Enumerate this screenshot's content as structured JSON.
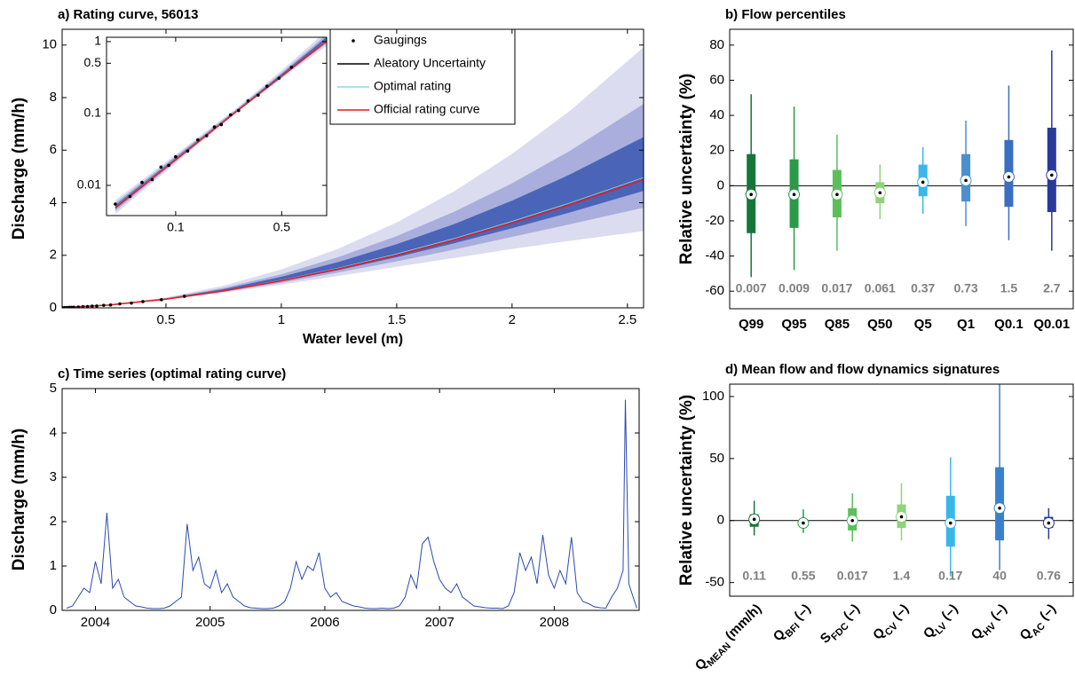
{
  "chart_data": [
    {
      "type": "line",
      "title": "a) Rating curve, 56013",
      "x_label": "Water level (m)",
      "y_label": "Discharge (mm/h)",
      "xlim": [
        0.05,
        2.57
      ],
      "ylim": [
        0,
        10.6
      ],
      "xticks": [
        0.5,
        1,
        1.5,
        2,
        2.5
      ],
      "yticks": [
        0,
        2,
        4,
        6,
        8,
        10
      ],
      "x": [
        0.04,
        0.25,
        0.5,
        0.75,
        1,
        1.25,
        1.5,
        1.75,
        2,
        2.25,
        2.57
      ],
      "bands": [
        {
          "color": "#dcdcf0",
          "lower": [
            0.004,
            0.103,
            0.306,
            0.576,
            0.88,
            1.22,
            1.56,
            1.9,
            2.24,
            2.55,
            2.92
          ],
          "upper": [
            0.0062,
            0.117,
            0.398,
            0.845,
            1.46,
            2.26,
            3.25,
            4.44,
            5.86,
            7.49,
            9.92
          ]
        },
        {
          "color": "#a9aedc",
          "lower": [
            0.0044,
            0.105,
            0.318,
            0.61,
            0.955,
            1.35,
            1.77,
            2.22,
            2.7,
            3.18,
            3.81
          ],
          "upper": [
            0.0057,
            0.113,
            0.37,
            0.762,
            1.28,
            1.94,
            2.73,
            3.66,
            4.74,
            5.97,
            7.76
          ]
        },
        {
          "color": "#4a64b8",
          "lower": [
            0.0047,
            0.106,
            0.326,
            0.634,
            1.01,
            1.44,
            1.93,
            2.46,
            3.03,
            3.63,
            4.45
          ],
          "upper": [
            0.0053,
            0.11,
            0.353,
            0.713,
            1.18,
            1.75,
            2.42,
            3.19,
            4.08,
            5.07,
            6.5
          ]
        }
      ],
      "points": {
        "name": "Gaugings",
        "color": "#000000",
        "x": [
          0.04,
          0.05,
          0.06,
          0.07,
          0.08,
          0.09,
          0.1,
          0.12,
          0.14,
          0.16,
          0.18,
          0.2,
          0.23,
          0.26,
          0.3,
          0.35,
          0.4,
          0.48,
          0.58
        ],
        "y": [
          0.0055,
          0.007,
          0.011,
          0.012,
          0.018,
          0.019,
          0.025,
          0.03,
          0.043,
          0.049,
          0.065,
          0.07,
          0.096,
          0.11,
          0.15,
          0.18,
          0.24,
          0.31,
          0.44
        ]
      },
      "series": [
        {
          "name": "Aleatory Uncertainty",
          "color": "#000000",
          "values": [
            0.005,
            0.107,
            0.333,
            0.654,
            1.05,
            1.52,
            2.05,
            2.64,
            3.29,
            3.99,
            4.96
          ]
        },
        {
          "name": "Optimal rating",
          "color": "#8fd6ee",
          "values": [
            0.005,
            0.107,
            0.333,
            0.654,
            1.05,
            1.52,
            2.05,
            2.64,
            3.29,
            3.99,
            4.96
          ]
        },
        {
          "name": "Official rating curve",
          "color": "#e8191c",
          "values": [
            0.0049,
            0.105,
            0.33,
            0.645,
            1.03,
            1.49,
            2.01,
            2.59,
            3.23,
            3.92,
            4.88
          ]
        }
      ],
      "inset": {
        "log": true,
        "xlim": [
          0.035,
          0.99
        ],
        "ylim": [
          0.0038,
          1.15
        ],
        "xticks": [
          0.1,
          0.5
        ],
        "yticks": [
          0.01,
          0.1,
          0.5,
          1
        ]
      }
    },
    {
      "type": "box",
      "title": "b) Flow percentiles",
      "y_label": "Relative uncertainty (%)",
      "ylim": [
        -70,
        89
      ],
      "yticks": [
        -60,
        -40,
        -20,
        0,
        20,
        40,
        60,
        80
      ],
      "zero_line": true,
      "categories": [
        "Q99",
        "Q95",
        "Q85",
        "Q50",
        "Q5",
        "Q1",
        "Q0.1",
        "Q0.01"
      ],
      "flows": [
        0.007,
        0.009,
        0.017,
        0.061,
        0.37,
        0.73,
        1.5,
        2.7
      ],
      "boxes": [
        {
          "low": -52,
          "q1": -27,
          "median": -5,
          "q3": 18,
          "high": 52,
          "color": "#16763a"
        },
        {
          "low": -48,
          "q1": -24,
          "median": -5,
          "q3": 15,
          "high": 45,
          "color": "#2a9a48"
        },
        {
          "low": -37,
          "q1": -18,
          "median": -5,
          "q3": 9,
          "high": 29,
          "color": "#5cbf5c"
        },
        {
          "low": -19,
          "q1": -10,
          "median": -4,
          "q3": 2,
          "high": 12,
          "color": "#8fd37a"
        },
        {
          "low": -16,
          "q1": -6,
          "median": 2,
          "q3": 12,
          "high": 22,
          "color": "#3ab7ea"
        },
        {
          "low": -23,
          "q1": -9,
          "median": 3,
          "q3": 18,
          "high": 37,
          "color": "#4a90d0"
        },
        {
          "low": -31,
          "q1": -12,
          "median": 5,
          "q3": 26,
          "high": 57,
          "color": "#3a6ec0"
        },
        {
          "low": -37,
          "q1": -15,
          "median": 6,
          "q3": 33,
          "high": 77,
          "color": "#2a3a9a"
        }
      ]
    },
    {
      "type": "line",
      "title": "c) Time series (optimal rating curve)",
      "y_label": "Discharge (mm/h)",
      "xlim": [
        2003.71,
        2008.74
      ],
      "ylim": [
        0,
        5
      ],
      "xticks": [
        2004,
        2005,
        2006,
        2007,
        2008
      ],
      "yticks": [
        0,
        1,
        2,
        3,
        4,
        5
      ],
      "color": "#2b4ab0",
      "x": [
        2003.75,
        2003.8,
        2003.85,
        2003.9,
        2003.95,
        2004.0,
        2004.05,
        2004.1,
        2004.15,
        2004.2,
        2004.25,
        2004.3,
        2004.35,
        2004.4,
        2004.45,
        2004.5,
        2004.55,
        2004.6,
        2004.65,
        2004.7,
        2004.75,
        2004.8,
        2004.85,
        2004.9,
        2004.95,
        2005.0,
        2005.05,
        2005.1,
        2005.15,
        2005.2,
        2005.25,
        2005.3,
        2005.35,
        2005.4,
        2005.45,
        2005.5,
        2005.55,
        2005.6,
        2005.65,
        2005.7,
        2005.75,
        2005.8,
        2005.85,
        2005.9,
        2005.95,
        2006.0,
        2006.05,
        2006.1,
        2006.15,
        2006.2,
        2006.25,
        2006.3,
        2006.35,
        2006.4,
        2006.45,
        2006.5,
        2006.55,
        2006.6,
        2006.65,
        2006.7,
        2006.75,
        2006.8,
        2006.85,
        2006.9,
        2006.95,
        2007.0,
        2007.05,
        2007.1,
        2007.15,
        2007.2,
        2007.25,
        2007.3,
        2007.35,
        2007.4,
        2007.45,
        2007.5,
        2007.55,
        2007.6,
        2007.65,
        2007.7,
        2007.75,
        2007.8,
        2007.85,
        2007.9,
        2007.95,
        2008.0,
        2008.05,
        2008.1,
        2008.15,
        2008.2,
        2008.25,
        2008.3,
        2008.35,
        2008.4,
        2008.45,
        2008.5,
        2008.55,
        2008.6,
        2008.62,
        2008.65,
        2008.7,
        2008.72
      ],
      "values": [
        0.05,
        0.1,
        0.3,
        0.5,
        0.4,
        1.1,
        0.6,
        2.2,
        0.5,
        0.7,
        0.3,
        0.2,
        0.1,
        0.08,
        0.05,
        0.04,
        0.04,
        0.05,
        0.1,
        0.2,
        0.3,
        1.95,
        0.9,
        1.2,
        0.6,
        0.5,
        0.9,
        0.4,
        0.6,
        0.3,
        0.2,
        0.1,
        0.06,
        0.05,
        0.04,
        0.04,
        0.05,
        0.1,
        0.2,
        0.5,
        1.1,
        0.7,
        1.0,
        0.9,
        1.3,
        0.5,
        0.3,
        0.4,
        0.2,
        0.15,
        0.1,
        0.08,
        0.05,
        0.04,
        0.04,
        0.05,
        0.04,
        0.05,
        0.1,
        0.3,
        0.8,
        0.5,
        1.5,
        1.65,
        1.1,
        0.7,
        0.5,
        0.4,
        0.6,
        0.3,
        0.2,
        0.1,
        0.08,
        0.06,
        0.05,
        0.05,
        0.04,
        0.1,
        0.4,
        1.3,
        0.9,
        1.2,
        0.6,
        1.7,
        0.8,
        0.5,
        0.9,
        0.6,
        1.65,
        0.4,
        0.2,
        0.15,
        0.08,
        0.06,
        0.05,
        0.3,
        0.5,
        0.9,
        4.75,
        0.6,
        0.2,
        0.05
      ]
    },
    {
      "type": "box",
      "title": "d) Mean flow and flow dynamics signatures",
      "y_label": "Relative uncertainty (%)",
      "ylim": [
        -61,
        110
      ],
      "yticks": [
        -50,
        0,
        50,
        100
      ],
      "zero_line": true,
      "categories": [
        [
          "Q",
          "MEAN",
          " (mm/h)"
        ],
        [
          "Q",
          "BFI",
          " (–)"
        ],
        [
          "S",
          "FDC",
          " (–)"
        ],
        [
          "Q",
          "CV",
          " (–)"
        ],
        [
          "Q",
          "LV",
          " (–)"
        ],
        [
          "Q",
          "HV",
          " (–)"
        ],
        [
          "Q",
          "AC",
          " (–)"
        ]
      ],
      "flows": [
        0.11,
        0.55,
        0.017,
        1.4,
        0.17,
        40,
        0.76
      ],
      "boxes": [
        {
          "low": -12,
          "q1": -5,
          "median": 1,
          "q3": 5,
          "high": 16,
          "color": "#16763a"
        },
        {
          "low": -10,
          "q1": -4,
          "median": -2,
          "q3": 1,
          "high": 9,
          "color": "#2a9a48"
        },
        {
          "low": -17,
          "q1": -8,
          "median": 0,
          "q3": 10,
          "high": 22,
          "color": "#5cbf5c"
        },
        {
          "low": -16,
          "q1": -6,
          "median": 3,
          "q3": 13,
          "high": 30,
          "color": "#8fd37a"
        },
        {
          "low": -45,
          "q1": -21,
          "median": -2,
          "q3": 20,
          "high": 51,
          "color": "#3ab7ea"
        },
        {
          "low": -40,
          "q1": -16,
          "median": 10,
          "q3": 43,
          "high": 110,
          "color": "#3a80cc"
        },
        {
          "low": -15,
          "q1": -6,
          "median": -2,
          "q3": 3,
          "high": 10,
          "color": "#2a3a9a"
        }
      ]
    }
  ]
}
